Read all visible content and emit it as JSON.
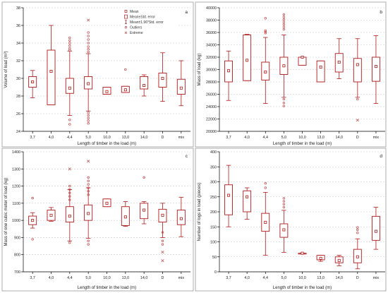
{
  "colors": {
    "box": "#b01818",
    "outlier": "#c04040",
    "extreme": "#c04040",
    "grid": "#c8c8c8",
    "axis": "#000000"
  },
  "legend": {
    "items": [
      {
        "symbol": "mean-icon",
        "label": "Mean"
      },
      {
        "symbol": "box-icon",
        "label": "Mean±Std. error"
      },
      {
        "symbol": "whisker-icon",
        "label": "Mean±1.96*Std. error"
      },
      {
        "symbol": "outlier-icon",
        "label": "Outliers"
      },
      {
        "symbol": "extreme-icon",
        "label": "Extreme"
      }
    ]
  },
  "chart_data": [
    {
      "type": "box",
      "panel": "a",
      "categories": [
        "3,7",
        "4,0",
        "4,4",
        "5,0",
        "10,0",
        "13,0",
        "14,0",
        "D",
        "mix"
      ],
      "xlabel": "Length of timber in the load (m)",
      "ylabel": "Volume of load (m³)",
      "ylim": [
        24,
        38
      ],
      "yticks": [
        24,
        26,
        28,
        30,
        32,
        34,
        36,
        38
      ],
      "grid": true,
      "series": [
        {
          "mean": [
            29.6,
            30.8,
            28.9,
            29.4,
            28.5,
            28.7,
            29.2,
            30.0,
            28.9
          ],
          "box": [
            [
              29.0,
              30.2
            ],
            [
              27.0,
              33.2
            ],
            [
              28.3,
              30.0
            ],
            [
              28.8,
              30.2
            ],
            [
              28.2,
              29.0
            ],
            [
              28.4,
              29.1
            ],
            [
              28.8,
              30.2
            ],
            [
              29.0,
              30.6
            ],
            [
              28.2,
              29.9
            ]
          ],
          "whisker": [
            [
              27.8,
              30.9
            ],
            [
              27.0,
              36.0
            ],
            [
              25.8,
              33.1
            ],
            [
              26.3,
              32.8
            ],
            [
              28.2,
              29.0
            ],
            [
              28.4,
              29.1
            ],
            [
              28.0,
              30.4
            ],
            [
              27.4,
              32.9
            ],
            [
              26.9,
              32.0
            ]
          ],
          "outliers": [
            [],
            [],
            [
              34.6,
              34.3,
              34.0,
              33.7,
              33.4,
              33.2,
              25.3,
              24.8
            ],
            [
              35.2,
              34.8,
              34.4,
              34.0,
              33.6,
              33.3,
              33.0,
              26.1,
              25.8,
              25.5,
              25.2,
              24.9
            ],
            [],
            [
              31.0
            ],
            [],
            [],
            []
          ],
          "extremes": [
            [],
            [],
            [],
            [
              36.6
            ],
            [],
            [],
            [],
            [],
            []
          ]
        }
      ]
    },
    {
      "type": "box",
      "panel": "b",
      "categories": [
        "3,7",
        "4,0",
        "4,4",
        "5,0",
        "10,0",
        "13,0",
        "14,0",
        "D",
        "mix"
      ],
      "xlabel": "Length of timber in the load (m)",
      "ylabel": "Mass of load (kg)",
      "ylim": [
        20000,
        40000
      ],
      "yticks": [
        20000,
        22000,
        24000,
        26000,
        28000,
        30000,
        32000,
        34000,
        36000,
        38000,
        40000
      ],
      "grid": true,
      "series": [
        {
          "mean": [
            29800,
            31500,
            29600,
            30600,
            32000,
            30400,
            31200,
            30800,
            30500
          ],
          "box": [
            [
              28000,
              31400
            ],
            [
              28200,
              35600
            ],
            [
              28300,
              31200
            ],
            [
              29200,
              32000
            ],
            [
              30700,
              32000
            ],
            [
              28000,
              31400
            ],
            [
              29600,
              32600
            ],
            [
              28000,
              31800
            ],
            [
              28100,
              32000
            ]
          ],
          "whisker": [
            [
              25000,
              33000
            ],
            [
              28200,
              35700
            ],
            [
              24500,
              35200
            ],
            [
              25500,
              35600
            ],
            [
              30700,
              32000
            ],
            [
              28000,
              31400
            ],
            [
              28500,
              35000
            ],
            [
              25500,
              35000
            ],
            [
              24500,
              35500
            ]
          ],
          "outliers": [
            [],
            [],
            [
              38300,
              36300,
              36100,
              35900
            ],
            [
              38900,
              38500,
              38100,
              37700,
              37300,
              36900,
              36500,
              25200,
              24600,
              24100
            ],
            [],
            [],
            [],
            [
              25200
            ],
            []
          ],
          "extremes": [
            [],
            [],
            [],
            [],
            [],
            [],
            [],
            [
              21800
            ],
            []
          ]
        }
      ]
    },
    {
      "type": "box",
      "panel": "c",
      "categories": [
        "3,7",
        "4,0",
        "4,4",
        "5,0",
        "10,0",
        "13,0",
        "14,0",
        "D",
        "mix"
      ],
      "xlabel": "Length of timber in the load (m)",
      "ylabel": "Mass of one cubic meter of load (kg)",
      "ylim": [
        700,
        1400
      ],
      "yticks": [
        700,
        800,
        900,
        1000,
        1100,
        1200,
        1300,
        1400
      ],
      "grid": true,
      "series": [
        {
          "mean": [
            1000,
            1030,
            1025,
            1040,
            1100,
            1020,
            1060,
            1030,
            1010
          ],
          "box": [
            [
              975,
              1025
            ],
            [
              1000,
              1060
            ],
            [
              990,
              1080
            ],
            [
              1000,
              1090
            ],
            [
              1080,
              1125
            ],
            [
              970,
              1080
            ],
            [
              1010,
              1100
            ],
            [
              990,
              1065
            ],
            [
              975,
              1060
            ]
          ],
          "whisker": [
            [
              955,
              1045
            ],
            [
              995,
              1075
            ],
            [
              880,
              1180
            ],
            [
              895,
              1190
            ],
            [
              1080,
              1125
            ],
            [
              965,
              1110
            ],
            [
              980,
              1110
            ],
            [
              900,
              1100
            ],
            [
              905,
              1135
            ]
          ],
          "outliers": [
            [
              1130,
              890
            ],
            [],
            [
              1200,
              1180,
              1160,
              1140,
              1120,
              870
            ],
            [
              1250,
              1230,
              1210,
              1190,
              1170,
              1150,
              880,
              860
            ],
            [],
            [],
            [
              1250
            ],
            [
              930,
              880,
              860
            ],
            []
          ],
          "extremes": [
            [],
            [],
            [
              1300
            ],
            [
              1345
            ],
            [],
            [],
            [],
            [
              815,
              765
            ],
            []
          ]
        }
      ]
    },
    {
      "type": "box",
      "panel": "d",
      "categories": [
        "3,7",
        "4,0",
        "4,4",
        "5,0",
        "10,0",
        "13,0",
        "14,0",
        "D",
        "mix"
      ],
      "xlabel": "Length of timber in the load (m)",
      "ylabel": "Number of logs in load (pieces)",
      "ylim": [
        0,
        400
      ],
      "yticks": [
        0,
        50,
        100,
        150,
        200,
        250,
        300,
        350,
        400
      ],
      "grid": true,
      "series": [
        {
          "mean": [
            255,
            250,
            165,
            140,
            62,
            45,
            38,
            50,
            135
          ],
          "box": [
            [
              190,
              290
            ],
            [
              200,
              270
            ],
            [
              135,
              195
            ],
            [
              115,
              160
            ],
            [
              60,
              62
            ],
            [
              40,
              55
            ],
            [
              30,
              50
            ],
            [
              30,
              75
            ],
            [
              105,
              185
            ]
          ],
          "whisker": [
            [
              150,
              355
            ],
            [
              175,
              280
            ],
            [
              55,
              265
            ],
            [
              65,
              205
            ],
            [
              60,
              62
            ],
            [
              35,
              55
            ],
            [
              20,
              55
            ],
            [
              10,
              110
            ],
            [
              75,
              215
            ]
          ],
          "outliers": [
            [],
            [],
            [
              295,
              280
            ],
            [
              245,
              235,
              225,
              215
            ],
            [],
            [],
            [],
            [
              148,
              140,
              130
            ],
            []
          ],
          "extremes": [
            [],
            [],
            [],
            [],
            [],
            [],
            [],
            [],
            []
          ]
        }
      ]
    }
  ]
}
